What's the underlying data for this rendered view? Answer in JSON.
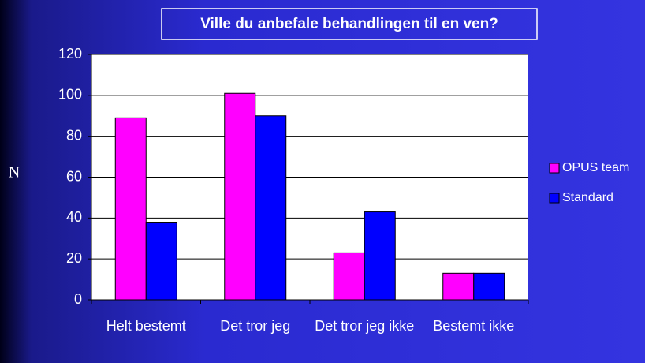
{
  "chart_data": {
    "type": "bar",
    "title": "Ville du anbefale behandlingen til en ven?",
    "y_label": "N",
    "categories": [
      "Helt bestemt",
      "Det tror jeg",
      "Det tror jeg ikke",
      "Bestemt ikke"
    ],
    "series": [
      {
        "name": "OPUS team",
        "color": "#ff00ff",
        "values": [
          89,
          101,
          23,
          13
        ]
      },
      {
        "name": "Standard",
        "color": "#0000ff",
        "values": [
          38,
          90,
          43,
          13
        ]
      }
    ],
    "ylim": [
      0,
      120
    ],
    "yticks": [
      0,
      20,
      40,
      60,
      80,
      100,
      120
    ],
    "grid": true,
    "legend": "right"
  }
}
